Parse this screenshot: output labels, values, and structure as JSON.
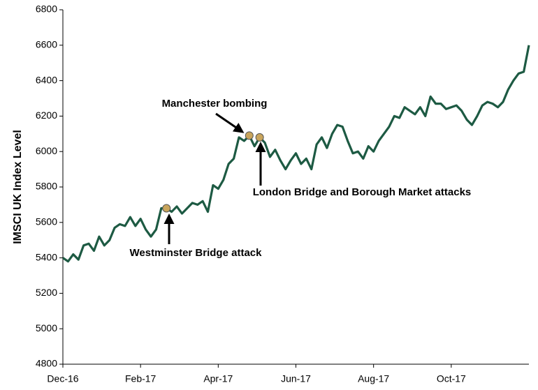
{
  "chart_data": {
    "type": "line",
    "y_label": "IMSCI UK Index Level",
    "categories": [
      "Dec-16",
      null,
      null,
      null,
      null,
      null,
      null,
      null,
      null,
      null,
      null,
      null,
      null,
      null,
      null,
      "Feb-17",
      null,
      null,
      null,
      null,
      null,
      null,
      null,
      null,
      null,
      null,
      null,
      null,
      null,
      null,
      "Apr-17",
      null,
      null,
      null,
      null,
      null,
      null,
      null,
      null,
      null,
      null,
      null,
      null,
      null,
      null,
      "Jun-17",
      null,
      null,
      null,
      null,
      null,
      null,
      null,
      null,
      null,
      null,
      null,
      null,
      null,
      null,
      "Aug-17",
      null,
      null,
      null,
      null,
      null,
      null,
      null,
      null,
      null,
      null,
      null,
      null,
      null,
      null,
      "Oct-17",
      null,
      null,
      null,
      null,
      null,
      null,
      null,
      null,
      null,
      null,
      null,
      null,
      null,
      null,
      null
    ],
    "series": [
      {
        "name": "IMSCI UK",
        "color": "#1d5a43",
        "values": [
          5400,
          5380,
          5420,
          5390,
          5470,
          5480,
          5440,
          5520,
          5470,
          5500,
          5570,
          5590,
          5580,
          5630,
          5580,
          5620,
          5560,
          5520,
          5560,
          5680,
          5680,
          5660,
          5690,
          5650,
          5680,
          5710,
          5700,
          5720,
          5660,
          5810,
          5790,
          5840,
          5930,
          5960,
          6080,
          6060,
          6090,
          6030,
          6080,
          6050,
          5970,
          6010,
          5950,
          5900,
          5950,
          5990,
          5930,
          5960,
          5900,
          6040,
          6080,
          6020,
          6100,
          6150,
          6140,
          6060,
          5990,
          6000,
          5960,
          6030,
          6000,
          6060,
          6100,
          6140,
          6200,
          6190,
          6250,
          6230,
          6210,
          6250,
          6200,
          6310,
          6270,
          6270,
          6240,
          6250,
          6260,
          6230,
          6180,
          6150,
          6200,
          6260,
          6280,
          6270,
          6250,
          6280,
          6350,
          6400,
          6440,
          6450,
          6600
        ]
      }
    ],
    "annotations": [
      {
        "text": "Westminster Bridge attack",
        "point": 20
      },
      {
        "text": "Manchester bombing",
        "point": 36
      },
      {
        "text": "London Bridge and Borough Market attacks",
        "point": 38
      }
    ],
    "marker_color": "#c9a55c",
    "ylim": [
      4800,
      6800
    ],
    "yticks": [
      4800,
      5000,
      5200,
      5400,
      5600,
      5800,
      6000,
      6200,
      6400,
      6600,
      6800
    ]
  }
}
